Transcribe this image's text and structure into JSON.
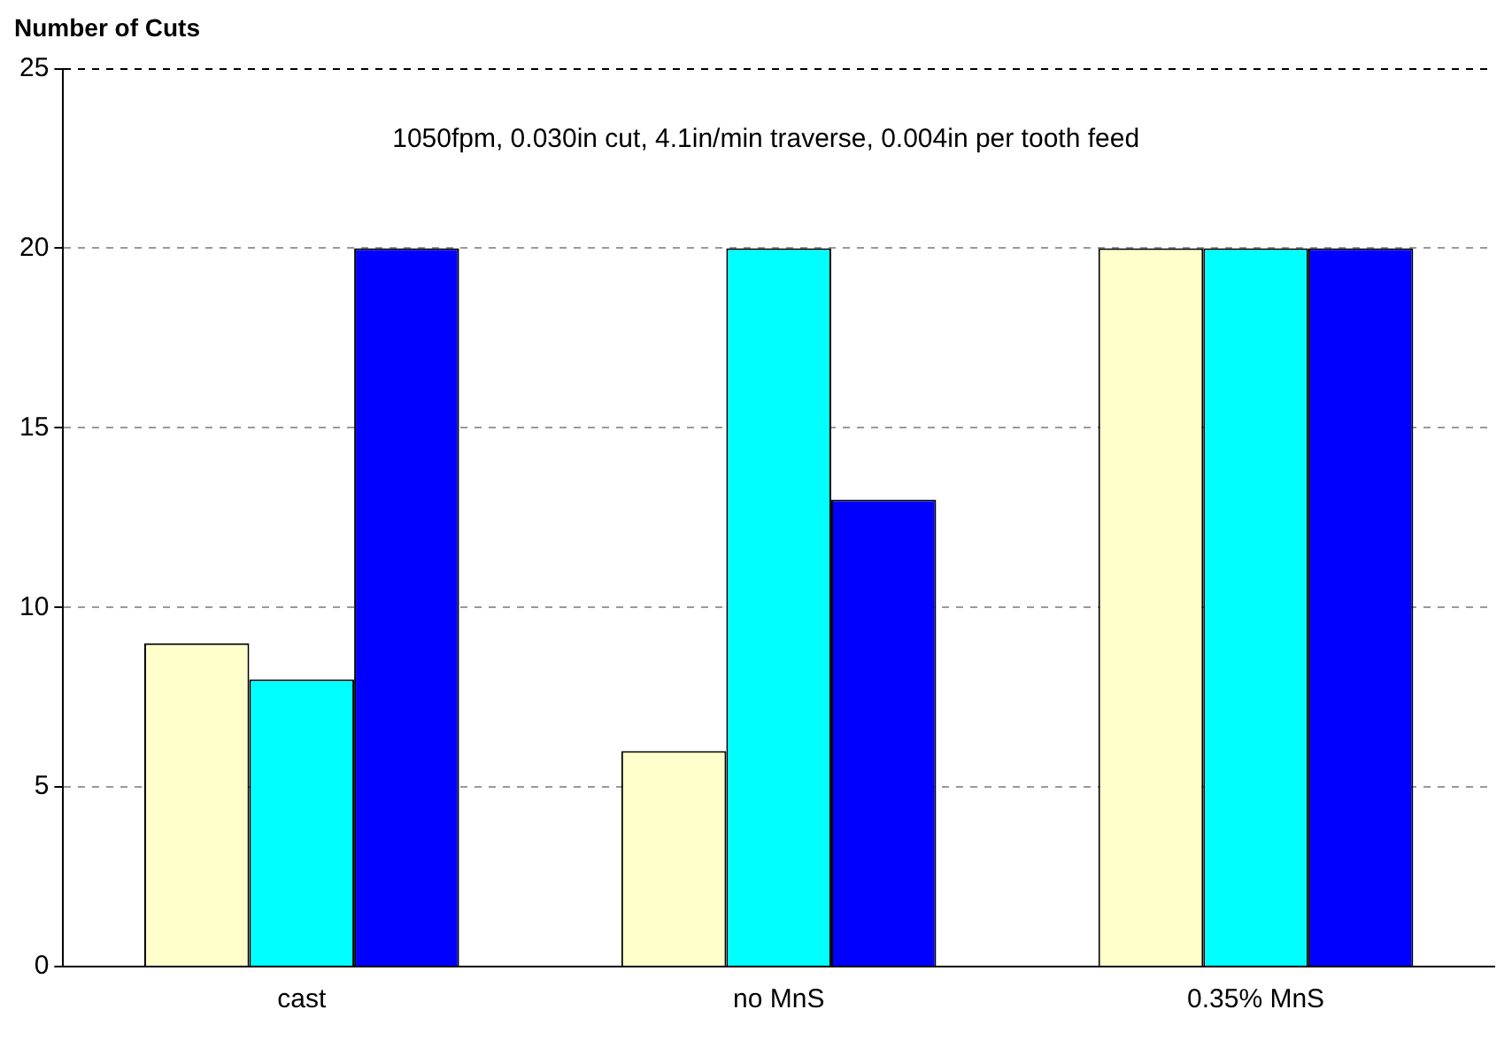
{
  "chart_data": {
    "type": "bar",
    "ylabel": "Number of Cuts",
    "categories": [
      "cast",
      "no MnS",
      "0.35% MnS"
    ],
    "series": [
      {
        "color": "#ffffcc",
        "values": [
          9,
          6,
          20
        ]
      },
      {
        "color": "#00ffff",
        "values": [
          8,
          20,
          20
        ]
      },
      {
        "color": "#0000ff",
        "values": [
          20,
          13,
          20
        ]
      }
    ],
    "ylim": [
      0,
      25
    ],
    "yticks": [
      0,
      5,
      10,
      15,
      20,
      25
    ],
    "grid": "y",
    "annotations": [
      "1050fpm, 0.030in cut, 4.1in/min traverse, 0.004in per tooth feed"
    ]
  }
}
